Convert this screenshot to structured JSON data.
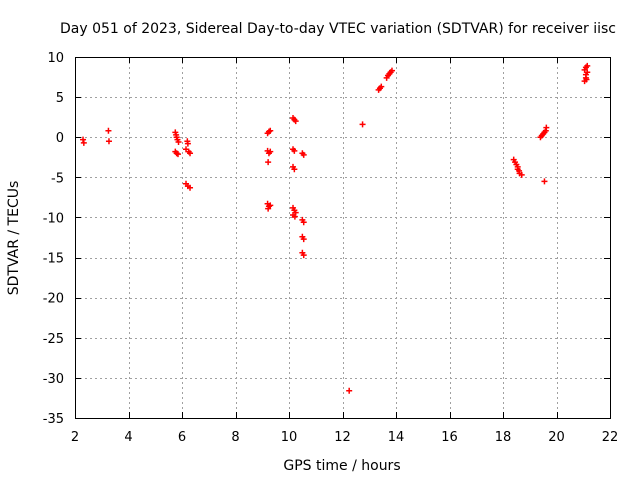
{
  "chart_data": {
    "type": "scatter",
    "title": "Day 051 of 2023, Sidereal Day-to-day VTEC variation (SDTVAR) for receiver iisc",
    "xlabel": "GPS time / hours",
    "ylabel": "SDTVAR / TECUs",
    "xlim": [
      2,
      22
    ],
    "ylim": [
      -35,
      10
    ],
    "xticks": [
      2,
      4,
      6,
      8,
      10,
      12,
      14,
      16,
      18,
      20,
      22
    ],
    "yticks": [
      -35,
      -30,
      -25,
      -20,
      -15,
      -10,
      -5,
      0,
      5,
      10
    ],
    "grid": true,
    "marker": "plus",
    "color": "#ff0000",
    "series": [
      {
        "name": "SDTVAR",
        "points": [
          [
            2.3,
            -0.3
          ],
          [
            2.33,
            -0.7
          ],
          [
            3.25,
            0.8
          ],
          [
            3.27,
            -0.5
          ],
          [
            5.75,
            0.6
          ],
          [
            5.78,
            0.3
          ],
          [
            5.8,
            0.0
          ],
          [
            5.83,
            -0.3
          ],
          [
            5.87,
            -0.6
          ],
          [
            5.75,
            -1.8
          ],
          [
            5.8,
            -2.0
          ],
          [
            5.85,
            -2.1
          ],
          [
            6.2,
            -0.5
          ],
          [
            6.22,
            -0.8
          ],
          [
            6.15,
            -1.5
          ],
          [
            6.25,
            -1.8
          ],
          [
            6.3,
            -2.0
          ],
          [
            6.15,
            -5.8
          ],
          [
            6.22,
            -6.1
          ],
          [
            6.3,
            -6.3
          ],
          [
            9.2,
            0.5
          ],
          [
            9.25,
            0.7
          ],
          [
            9.3,
            0.8
          ],
          [
            9.2,
            -1.7
          ],
          [
            9.25,
            -2.0
          ],
          [
            9.3,
            -1.8
          ],
          [
            9.22,
            -3.1
          ],
          [
            9.2,
            -8.3
          ],
          [
            9.25,
            -8.6
          ],
          [
            9.22,
            -8.9
          ],
          [
            9.3,
            -8.5
          ],
          [
            10.15,
            2.4
          ],
          [
            10.2,
            2.2
          ],
          [
            10.25,
            2.0
          ],
          [
            10.15,
            -1.5
          ],
          [
            10.2,
            -1.7
          ],
          [
            10.15,
            -3.7
          ],
          [
            10.2,
            -4.0
          ],
          [
            10.5,
            -2.0
          ],
          [
            10.55,
            -2.2
          ],
          [
            10.15,
            -8.8
          ],
          [
            10.2,
            -9.1
          ],
          [
            10.25,
            -9.4
          ],
          [
            10.15,
            -9.7
          ],
          [
            10.22,
            -9.9
          ],
          [
            10.5,
            -10.3
          ],
          [
            10.55,
            -10.6
          ],
          [
            10.5,
            -12.4
          ],
          [
            10.55,
            -12.7
          ],
          [
            10.5,
            -14.4
          ],
          [
            10.55,
            -14.7
          ],
          [
            12.25,
            -31.6
          ],
          [
            12.75,
            1.6
          ],
          [
            13.35,
            5.9
          ],
          [
            13.4,
            6.1
          ],
          [
            13.45,
            6.3
          ],
          [
            13.65,
            7.4
          ],
          [
            13.7,
            7.7
          ],
          [
            13.75,
            7.9
          ],
          [
            13.8,
            8.1
          ],
          [
            13.85,
            8.3
          ],
          [
            18.4,
            -2.8
          ],
          [
            18.45,
            -3.1
          ],
          [
            18.5,
            -3.4
          ],
          [
            18.55,
            -3.7
          ],
          [
            18.55,
            -4.0
          ],
          [
            18.6,
            -4.2
          ],
          [
            18.62,
            -4.5
          ],
          [
            18.7,
            -4.7
          ],
          [
            19.4,
            0.0
          ],
          [
            19.45,
            0.2
          ],
          [
            19.5,
            0.4
          ],
          [
            19.55,
            0.6
          ],
          [
            19.6,
            0.8
          ],
          [
            19.62,
            1.2
          ],
          [
            19.55,
            -5.5
          ],
          [
            21.05,
            7.0
          ],
          [
            21.1,
            7.4
          ],
          [
            21.1,
            7.8
          ],
          [
            21.15,
            8.1
          ],
          [
            21.05,
            8.4
          ],
          [
            21.1,
            8.7
          ],
          [
            21.15,
            8.9
          ],
          [
            21.12,
            7.2
          ]
        ]
      }
    ]
  }
}
